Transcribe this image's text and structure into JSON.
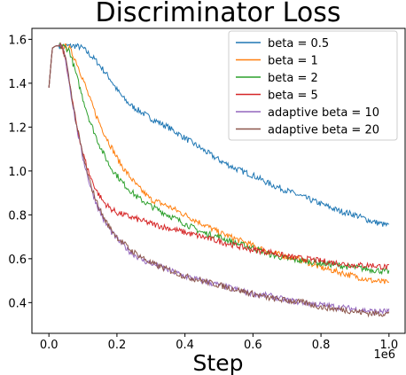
{
  "chart_data": {
    "type": "line",
    "title": "Discriminator Loss",
    "xlabel": "Step",
    "ylabel": "",
    "x_offset_label": "1e6",
    "xlim": [
      -0.05,
      1.05
    ],
    "ylim": [
      0.26,
      1.65
    ],
    "x_ticks": [
      0.0,
      0.2,
      0.4,
      0.6,
      0.8,
      1.0
    ],
    "x_tick_labels": [
      "0.0",
      "0.2",
      "0.4",
      "0.6",
      "0.8",
      "1.0"
    ],
    "y_ticks": [
      0.4,
      0.6,
      0.8,
      1.0,
      1.2,
      1.4,
      1.6
    ],
    "y_tick_labels": [
      "0.4",
      "0.6",
      "0.8",
      "1.0",
      "1.2",
      "1.4",
      "1.6"
    ],
    "grid": false,
    "legend_position": "top-right",
    "series": [
      {
        "name": "beta = 0.5",
        "color": "#1f77b4",
        "x": [
          0.0,
          0.01,
          0.02,
          0.04,
          0.06,
          0.08,
          0.1,
          0.12,
          0.14,
          0.16,
          0.18,
          0.2,
          0.22,
          0.24,
          0.26,
          0.28,
          0.3,
          0.35,
          0.4,
          0.45,
          0.5,
          0.55,
          0.6,
          0.65,
          0.7,
          0.75,
          0.8,
          0.85,
          0.9,
          0.95,
          1.0
        ],
        "y": [
          1.38,
          1.56,
          1.57,
          1.57,
          1.57,
          1.57,
          1.56,
          1.53,
          1.5,
          1.46,
          1.42,
          1.37,
          1.33,
          1.3,
          1.28,
          1.26,
          1.24,
          1.2,
          1.15,
          1.1,
          1.05,
          1.01,
          0.98,
          0.94,
          0.91,
          0.88,
          0.85,
          0.82,
          0.8,
          0.77,
          0.75
        ]
      },
      {
        "name": "beta = 1",
        "color": "#ff7f0e",
        "x": [
          0.0,
          0.01,
          0.02,
          0.04,
          0.06,
          0.08,
          0.1,
          0.12,
          0.14,
          0.16,
          0.18,
          0.2,
          0.22,
          0.24,
          0.26,
          0.28,
          0.3,
          0.35,
          0.4,
          0.45,
          0.5,
          0.55,
          0.6,
          0.65,
          0.7,
          0.75,
          0.8,
          0.85,
          0.9,
          0.95,
          1.0
        ],
        "y": [
          1.38,
          1.56,
          1.57,
          1.57,
          1.56,
          1.5,
          1.42,
          1.33,
          1.25,
          1.18,
          1.12,
          1.06,
          1.01,
          0.97,
          0.93,
          0.9,
          0.87,
          0.84,
          0.8,
          0.76,
          0.72,
          0.69,
          0.66,
          0.63,
          0.61,
          0.59,
          0.56,
          0.54,
          0.52,
          0.5,
          0.49
        ]
      },
      {
        "name": "beta = 2",
        "color": "#2ca02c",
        "x": [
          0.0,
          0.01,
          0.02,
          0.04,
          0.06,
          0.08,
          0.1,
          0.12,
          0.14,
          0.16,
          0.18,
          0.2,
          0.22,
          0.24,
          0.26,
          0.28,
          0.3,
          0.35,
          0.4,
          0.45,
          0.5,
          0.55,
          0.6,
          0.65,
          0.7,
          0.75,
          0.8,
          0.85,
          0.9,
          0.95,
          1.0
        ],
        "y": [
          1.38,
          1.56,
          1.57,
          1.57,
          1.55,
          1.44,
          1.33,
          1.23,
          1.15,
          1.08,
          1.02,
          0.98,
          0.94,
          0.91,
          0.88,
          0.86,
          0.84,
          0.8,
          0.76,
          0.72,
          0.7,
          0.67,
          0.65,
          0.62,
          0.6,
          0.59,
          0.58,
          0.57,
          0.56,
          0.55,
          0.54
        ]
      },
      {
        "name": "beta = 5",
        "color": "#d62728",
        "x": [
          0.0,
          0.01,
          0.02,
          0.03,
          0.04,
          0.05,
          0.06,
          0.08,
          0.1,
          0.12,
          0.14,
          0.16,
          0.18,
          0.2,
          0.22,
          0.24,
          0.26,
          0.28,
          0.3,
          0.35,
          0.4,
          0.45,
          0.5,
          0.55,
          0.6,
          0.65,
          0.7,
          0.75,
          0.8,
          0.85,
          0.9,
          0.95,
          1.0
        ],
        "y": [
          1.38,
          1.56,
          1.57,
          1.57,
          1.56,
          1.5,
          1.4,
          1.22,
          1.08,
          0.98,
          0.91,
          0.86,
          0.83,
          0.81,
          0.8,
          0.79,
          0.78,
          0.77,
          0.76,
          0.74,
          0.72,
          0.7,
          0.68,
          0.66,
          0.64,
          0.63,
          0.61,
          0.6,
          0.59,
          0.58,
          0.57,
          0.57,
          0.56
        ]
      },
      {
        "name": "adaptive beta = 10",
        "color": "#9467bd",
        "x": [
          0.0,
          0.01,
          0.02,
          0.03,
          0.04,
          0.05,
          0.06,
          0.08,
          0.1,
          0.12,
          0.14,
          0.16,
          0.18,
          0.2,
          0.22,
          0.24,
          0.26,
          0.28,
          0.3,
          0.35,
          0.4,
          0.45,
          0.5,
          0.55,
          0.6,
          0.65,
          0.7,
          0.75,
          0.8,
          0.85,
          0.9,
          0.95,
          1.0
        ],
        "y": [
          1.38,
          1.56,
          1.57,
          1.57,
          1.56,
          1.5,
          1.4,
          1.21,
          1.06,
          0.94,
          0.85,
          0.78,
          0.73,
          0.69,
          0.66,
          0.63,
          0.61,
          0.59,
          0.58,
          0.55,
          0.52,
          0.5,
          0.48,
          0.46,
          0.44,
          0.43,
          0.41,
          0.4,
          0.39,
          0.38,
          0.37,
          0.36,
          0.36
        ]
      },
      {
        "name": "adaptive beta = 20",
        "color": "#8c564b",
        "x": [
          0.0,
          0.01,
          0.02,
          0.03,
          0.04,
          0.05,
          0.06,
          0.08,
          0.1,
          0.12,
          0.14,
          0.16,
          0.18,
          0.2,
          0.22,
          0.24,
          0.26,
          0.28,
          0.3,
          0.35,
          0.4,
          0.45,
          0.5,
          0.55,
          0.6,
          0.65,
          0.7,
          0.75,
          0.8,
          0.85,
          0.9,
          0.95,
          1.0
        ],
        "y": [
          1.38,
          1.56,
          1.57,
          1.57,
          1.56,
          1.51,
          1.41,
          1.22,
          1.07,
          0.95,
          0.86,
          0.79,
          0.74,
          0.7,
          0.67,
          0.64,
          0.62,
          0.6,
          0.58,
          0.55,
          0.52,
          0.5,
          0.48,
          0.46,
          0.44,
          0.42,
          0.41,
          0.4,
          0.38,
          0.37,
          0.36,
          0.35,
          0.35
        ]
      }
    ]
  }
}
